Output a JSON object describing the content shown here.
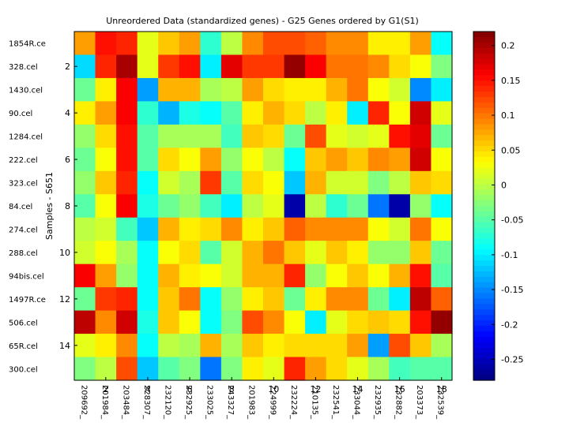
{
  "chart_data": {
    "type": "heatmap",
    "title": "Unreordered Data (standardized genes) - G25 Genes ordered by G1(S1)",
    "ylabel": "Samples - S651",
    "xlabel": "",
    "rows": [
      "1854R.ce",
      "328.cel",
      "1430.cel",
      "90.cel",
      "1284.cel",
      "222.cel",
      "323.cel",
      "84.cel",
      "274.cel",
      "288.cel",
      "94bis.cel",
      "1497R.ce",
      "506.cel",
      "65R.cel",
      "300.cel"
    ],
    "y_ticks": [
      2,
      4,
      6,
      8,
      10,
      12,
      14
    ],
    "columns": [
      "209692_",
      "201984_",
      "203484_",
      "228307_",
      "232120_",
      "232925_",
      "233025_",
      "243327_",
      "201983_",
      "224999_",
      "232224_",
      "210135_",
      "232541_",
      "233044_",
      "232935_",
      "232882_",
      "203373_",
      "232539_"
    ],
    "x_ticks": [
      2,
      4,
      6,
      8,
      10,
      12,
      14,
      16,
      18
    ],
    "values": [
      [
        0.08,
        0.15,
        0.14,
        0.02,
        0.06,
        0.08,
        -0.07,
        0.0,
        0.09,
        0.12,
        0.12,
        0.11,
        0.09,
        0.09,
        0.04,
        0.04,
        0.08,
        -0.09
      ],
      [
        -0.11,
        0.14,
        0.2,
        0.02,
        0.13,
        0.15,
        -0.1,
        0.17,
        0.13,
        0.13,
        0.21,
        0.16,
        0.1,
        0.1,
        0.09,
        0.05,
        0.03,
        -0.03
      ],
      [
        -0.04,
        0.04,
        0.16,
        -0.14,
        0.07,
        0.07,
        -0.01,
        0.0,
        0.08,
        0.05,
        0.04,
        0.04,
        0.07,
        0.1,
        0.03,
        0.01,
        -0.15,
        -0.1
      ],
      [
        0.04,
        0.08,
        0.16,
        -0.07,
        -0.13,
        -0.08,
        -0.09,
        -0.05,
        0.04,
        0.07,
        0.05,
        0.0,
        0.04,
        -0.1,
        0.14,
        0.03,
        0.18,
        0.02
      ],
      [
        -0.02,
        0.05,
        0.15,
        -0.05,
        -0.01,
        -0.01,
        -0.01,
        -0.06,
        0.06,
        0.05,
        -0.04,
        0.12,
        0.02,
        0.01,
        0.02,
        0.15,
        0.17,
        -0.04
      ],
      [
        -0.04,
        0.03,
        0.15,
        -0.05,
        0.05,
        0.03,
        0.08,
        -0.02,
        0.03,
        0.0,
        -0.09,
        0.06,
        0.08,
        0.06,
        0.09,
        0.08,
        0.18,
        0.03
      ],
      [
        -0.02,
        0.06,
        0.14,
        -0.09,
        0.01,
        -0.01,
        0.13,
        -0.05,
        0.05,
        0.03,
        -0.12,
        0.07,
        0.01,
        0.01,
        -0.03,
        0.0,
        0.06,
        0.05
      ],
      [
        -0.05,
        0.03,
        0.16,
        -0.08,
        -0.04,
        -0.02,
        -0.06,
        -0.1,
        0.0,
        0.02,
        -0.26,
        0.0,
        -0.07,
        -0.04,
        -0.16,
        -0.26,
        -0.02,
        -0.09
      ],
      [
        0.0,
        0.01,
        -0.06,
        -0.12,
        0.07,
        0.04,
        0.05,
        0.09,
        0.04,
        0.06,
        0.11,
        0.09,
        0.09,
        0.09,
        0.03,
        0.01,
        0.1,
        0.03
      ],
      [
        0.01,
        0.03,
        -0.01,
        -0.09,
        0.03,
        0.05,
        -0.05,
        0.01,
        0.07,
        0.1,
        0.06,
        0.02,
        0.06,
        0.04,
        -0.02,
        -0.02,
        0.06,
        -0.04
      ],
      [
        0.16,
        0.08,
        -0.02,
        -0.09,
        0.07,
        0.04,
        0.03,
        0.01,
        0.07,
        0.07,
        0.14,
        -0.02,
        0.03,
        0.06,
        0.03,
        0.07,
        0.15,
        -0.05
      ],
      [
        -0.04,
        0.13,
        0.14,
        -0.09,
        0.06,
        0.1,
        -0.09,
        -0.02,
        0.04,
        0.06,
        -0.04,
        0.04,
        0.09,
        0.09,
        -0.04,
        -0.1,
        0.19,
        0.11
      ],
      [
        0.19,
        0.09,
        0.18,
        -0.08,
        0.06,
        0.03,
        -0.09,
        -0.03,
        0.12,
        0.09,
        0.03,
        -0.1,
        0.02,
        0.05,
        0.06,
        0.05,
        0.15,
        0.21
      ],
      [
        0.02,
        0.04,
        0.09,
        -0.09,
        0.0,
        -0.01,
        0.07,
        -0.01,
        0.06,
        0.04,
        0.05,
        0.05,
        0.05,
        0.08,
        -0.14,
        0.12,
        0.06,
        -0.01
      ],
      [
        -0.03,
        0.0,
        0.12,
        -0.12,
        -0.05,
        -0.03,
        -0.16,
        -0.03,
        0.04,
        0.02,
        0.14,
        0.08,
        0.05,
        0.02,
        -0.01,
        -0.06,
        -0.05,
        -0.05
      ]
    ],
    "colorbar": {
      "colormap": "jet",
      "range": [
        -0.28,
        0.22
      ],
      "ticks": [
        0.2,
        0.15,
        0.1,
        0.05,
        0,
        -0.05,
        -0.1,
        -0.15,
        -0.2,
        -0.25
      ]
    }
  }
}
